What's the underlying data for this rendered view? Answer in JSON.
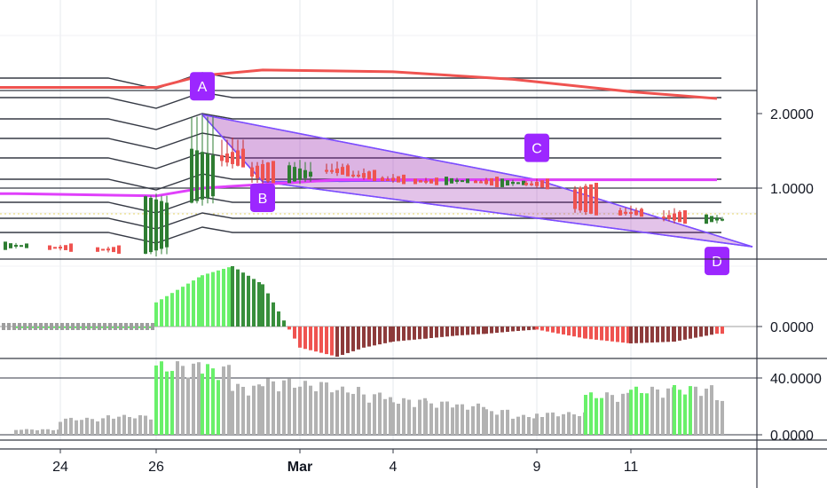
{
  "chart_data": [
    {
      "type": "candlestick",
      "panel": "price",
      "title": "",
      "y_scale": "log",
      "y_ticks": [
        {
          "value": 2.0,
          "label": "2.0000"
        },
        {
          "value": 1.0,
          "label": "1.0000"
        }
      ],
      "x_ticks": [
        "24",
        "26",
        "Mar",
        "4",
        "9",
        "11"
      ],
      "series": [
        {
          "name": "",
          "kind": "line",
          "color": "#ef5350",
          "points": [
            {
              "x": "Feb 23",
              "y": 2.55
            },
            {
              "x": "Feb 26",
              "y": 2.55
            },
            {
              "x": "Feb 27",
              "y": 2.85
            },
            {
              "x": "Feb 29",
              "y": 3.0
            },
            {
              "x": "Mar 4",
              "y": 2.95
            },
            {
              "x": "Mar 8",
              "y": 2.75
            },
            {
              "x": "Mar 11",
              "y": 2.45
            },
            {
              "x": "Mar 13",
              "y": 2.3
            }
          ]
        },
        {
          "name": "",
          "kind": "line",
          "color": "#e040fb",
          "points": [
            {
              "x": "Feb 23",
              "y": 0.95
            },
            {
              "x": "Feb 26",
              "y": 0.93
            },
            {
              "x": "Feb 27",
              "y": 1.0
            },
            {
              "x": "Mar 2",
              "y": 1.08
            },
            {
              "x": "Mar 13",
              "y": 1.08
            }
          ]
        }
      ],
      "pattern": {
        "color": "#9c27b0",
        "points": [
          {
            "label": "A",
            "x": "Feb 27",
            "y": 1.98
          },
          {
            "label": "B",
            "x": "Feb 29",
            "y": 1.06
          },
          {
            "label": "C",
            "x": "Mar 9",
            "y": 1.08
          },
          {
            "label": "D",
            "x": "Mar 13",
            "y": 0.64
          }
        ]
      },
      "candles": [
        {
          "x": "Feb 23",
          "o": 0.58,
          "h": 0.6,
          "l": 0.57,
          "c": 0.59,
          "up": true
        },
        {
          "x": "Feb 24",
          "o": 0.58,
          "h": 0.59,
          "l": 0.56,
          "c": 0.57,
          "up": false
        },
        {
          "x": "Feb 25",
          "o": 0.57,
          "h": 0.58,
          "l": 0.55,
          "c": 0.56,
          "up": false
        },
        {
          "x": "Feb 26",
          "o": 0.56,
          "h": 0.95,
          "l": 0.53,
          "c": 0.9,
          "up": true
        },
        {
          "x": "Feb 27",
          "o": 0.9,
          "h": 1.98,
          "l": 0.85,
          "c": 1.4,
          "up": true
        },
        {
          "x": "Feb 28",
          "o": 1.4,
          "h": 1.6,
          "l": 1.2,
          "c": 1.25,
          "up": false
        },
        {
          "x": "Feb 29",
          "o": 1.25,
          "h": 1.3,
          "l": 1.03,
          "c": 1.08,
          "up": false
        },
        {
          "x": "Mar 1",
          "o": 1.08,
          "h": 1.3,
          "l": 1.04,
          "c": 1.2,
          "up": true
        },
        {
          "x": "Mar 2",
          "o": 1.2,
          "h": 1.28,
          "l": 1.12,
          "c": 1.15,
          "up": false
        },
        {
          "x": "Mar 3",
          "o": 1.15,
          "h": 1.2,
          "l": 1.08,
          "c": 1.1,
          "up": false
        },
        {
          "x": "Mar 4",
          "o": 1.1,
          "h": 1.14,
          "l": 1.05,
          "c": 1.07,
          "up": false
        },
        {
          "x": "Mar 5",
          "o": 1.07,
          "h": 1.1,
          "l": 1.04,
          "c": 1.06,
          "up": false
        },
        {
          "x": "Mar 6",
          "o": 1.06,
          "h": 1.1,
          "l": 1.04,
          "c": 1.08,
          "up": true
        },
        {
          "x": "Mar 7",
          "o": 1.08,
          "h": 1.1,
          "l": 1.03,
          "c": 1.04,
          "up": false
        },
        {
          "x": "Mar 8",
          "o": 1.04,
          "h": 1.08,
          "l": 1.02,
          "c": 1.06,
          "up": true
        },
        {
          "x": "Mar 9",
          "o": 1.06,
          "h": 1.09,
          "l": 1.0,
          "c": 1.02,
          "up": false
        },
        {
          "x": "Mar 10",
          "o": 1.02,
          "h": 1.04,
          "l": 0.78,
          "c": 0.8,
          "up": false
        },
        {
          "x": "Mar 11",
          "o": 0.8,
          "h": 0.85,
          "l": 0.76,
          "c": 0.79,
          "up": false
        },
        {
          "x": "Mar 12",
          "o": 0.79,
          "h": 0.83,
          "l": 0.72,
          "c": 0.74,
          "up": false
        },
        {
          "x": "Mar 13",
          "o": 0.74,
          "h": 0.78,
          "l": 0.72,
          "c": 0.76,
          "up": true
        }
      ]
    },
    {
      "type": "bar",
      "panel": "oscillator",
      "title": "",
      "y_ticks": [
        {
          "value": 0.0,
          "label": "0.0000"
        }
      ],
      "x": [
        "Feb 26",
        "Feb 27",
        "Feb 28",
        "Feb 29",
        "Mar 1",
        "Mar 2",
        "Mar 3",
        "Mar 4",
        "Mar 5",
        "Mar 6",
        "Mar 7",
        "Mar 8",
        "Mar 9",
        "Mar 10",
        "Mar 11",
        "Mar 12",
        "Mar 13"
      ],
      "values": [
        0.4,
        0.85,
        1.0,
        0.7,
        -0.35,
        -0.5,
        -0.35,
        -0.25,
        -0.2,
        -0.15,
        -0.12,
        -0.08,
        -0.05,
        -0.2,
        -0.28,
        -0.25,
        -0.12
      ],
      "colors": {
        "rising_positive": "#69f06a",
        "falling_positive": "#388e3c",
        "falling_negative": "#ef5350",
        "rising_negative": "#8d3b3b"
      }
    },
    {
      "type": "bar",
      "panel": "volume",
      "title": "",
      "y_ticks": [
        {
          "value": 40.0,
          "label": "40.0000"
        },
        {
          "value": 0.0,
          "label": "0.0000"
        }
      ],
      "x": [
        "Feb 23",
        "Feb 24",
        "Feb 25",
        "Feb 26",
        "Feb 27",
        "Feb 28",
        "Feb 29",
        "Mar 1",
        "Mar 2",
        "Mar 3",
        "Mar 4",
        "Mar 5",
        "Mar 6",
        "Mar 7",
        "Mar 8",
        "Mar 9",
        "Mar 10",
        "Mar 11",
        "Mar 12",
        "Mar 13"
      ],
      "values": [
        4,
        12,
        14,
        52,
        50,
        36,
        40,
        38,
        34,
        30,
        26,
        24,
        22,
        18,
        14,
        16,
        30,
        34,
        35,
        28
      ],
      "highlight": [
        false,
        false,
        false,
        true,
        true,
        false,
        false,
        false,
        false,
        false,
        false,
        false,
        false,
        false,
        false,
        false,
        true,
        true,
        true,
        false
      ],
      "colors": {
        "normal": "#b2b2b2",
        "highlight": "#69f06a"
      }
    }
  ]
}
